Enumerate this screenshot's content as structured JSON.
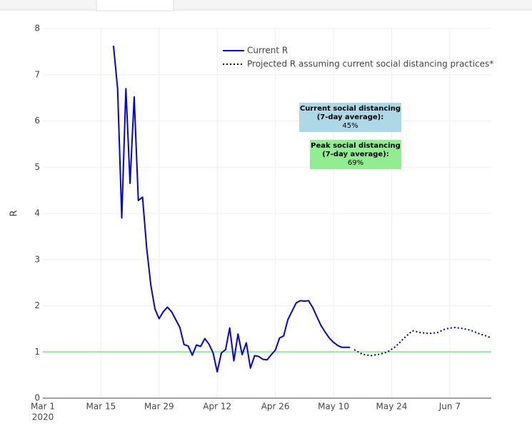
{
  "chart_data": {
    "type": "line",
    "y_label": "R",
    "ylim": [
      0,
      8
    ],
    "yticks": [
      0,
      1,
      2,
      3,
      4,
      5,
      6,
      7,
      8
    ],
    "xlim": [
      "2020-03-01",
      "2020-06-17"
    ],
    "xticks": [
      {
        "value": "2020-03-01",
        "label": "Mar 1"
      },
      {
        "value": "2020-03-15",
        "label": "Mar 15"
      },
      {
        "value": "2020-03-29",
        "label": "Mar 29"
      },
      {
        "value": "2020-04-12",
        "label": "Apr 12"
      },
      {
        "value": "2020-04-26",
        "label": "Apr 26"
      },
      {
        "value": "2020-05-10",
        "label": "May 10"
      },
      {
        "value": "2020-05-24",
        "label": "May 24"
      },
      {
        "value": "2020-06-07",
        "label": "Jun 7"
      }
    ],
    "x_year_label": "2020",
    "grid": true,
    "legend_position": "top-right",
    "reference_line": {
      "value": 1,
      "color": "#90ee90"
    },
    "series": [
      {
        "name": "Current R",
        "color": "#0000ee",
        "dash": "solid",
        "x": [
          "2020-03-18",
          "2020-03-19",
          "2020-03-20",
          "2020-03-21",
          "2020-03-22",
          "2020-03-23",
          "2020-03-24",
          "2020-03-25",
          "2020-03-26",
          "2020-03-27",
          "2020-03-28",
          "2020-03-29",
          "2020-03-30",
          "2020-03-31",
          "2020-04-01",
          "2020-04-02",
          "2020-04-03",
          "2020-04-04",
          "2020-04-05",
          "2020-04-06",
          "2020-04-07",
          "2020-04-08",
          "2020-04-09",
          "2020-04-10",
          "2020-04-11",
          "2020-04-12",
          "2020-04-13",
          "2020-04-14",
          "2020-04-15",
          "2020-04-16",
          "2020-04-17",
          "2020-04-18",
          "2020-04-19",
          "2020-04-20",
          "2020-04-21",
          "2020-04-22",
          "2020-04-23",
          "2020-04-24",
          "2020-04-25",
          "2020-04-26",
          "2020-04-27",
          "2020-04-28",
          "2020-04-29",
          "2020-04-30",
          "2020-05-01",
          "2020-05-02",
          "2020-05-03",
          "2020-05-04",
          "2020-05-05",
          "2020-05-06",
          "2020-05-07",
          "2020-05-08",
          "2020-05-09",
          "2020-05-10",
          "2020-05-11",
          "2020-05-12",
          "2020-05-13",
          "2020-05-14"
        ],
        "values": [
          7.63,
          6.7,
          3.9,
          6.7,
          4.65,
          6.52,
          4.28,
          4.35,
          3.25,
          2.45,
          1.93,
          1.72,
          1.87,
          1.97,
          1.87,
          1.7,
          1.53,
          1.16,
          1.13,
          0.93,
          1.15,
          1.12,
          1.29,
          1.17,
          0.98,
          0.57,
          0.98,
          1.05,
          1.52,
          0.81,
          1.39,
          0.94,
          1.2,
          0.65,
          0.92,
          0.9,
          0.84,
          0.83,
          0.94,
          1.04,
          1.3,
          1.35,
          1.7,
          1.88,
          2.06,
          2.11,
          2.1,
          2.11,
          1.96,
          1.76,
          1.57,
          1.43,
          1.3,
          1.21,
          1.14,
          1.1,
          1.1,
          1.1
        ]
      },
      {
        "name": "Projected R assuming current social distancing practices*",
        "color": "#00008b",
        "dash": "dot",
        "x": [
          "2020-05-15",
          "2020-05-17",
          "2020-05-19",
          "2020-05-21",
          "2020-05-23",
          "2020-05-25",
          "2020-05-27",
          "2020-05-29",
          "2020-05-31",
          "2020-06-02",
          "2020-06-04",
          "2020-06-06",
          "2020-06-08",
          "2020-06-10",
          "2020-06-12",
          "2020-06-14",
          "2020-06-16",
          "2020-06-17"
        ],
        "values": [
          1.05,
          0.95,
          0.92,
          0.95,
          1.0,
          1.12,
          1.3,
          1.46,
          1.42,
          1.4,
          1.42,
          1.5,
          1.53,
          1.51,
          1.47,
          1.4,
          1.34,
          1.3
        ]
      }
    ],
    "annotations": [
      {
        "lines": [
          "Current social distancing",
          "(7-day average):",
          "45%"
        ],
        "color": "#add8e6"
      },
      {
        "lines": [
          "Peak social distancing",
          "(7-day average):",
          "69%"
        ],
        "color": "#90ee90"
      }
    ]
  }
}
